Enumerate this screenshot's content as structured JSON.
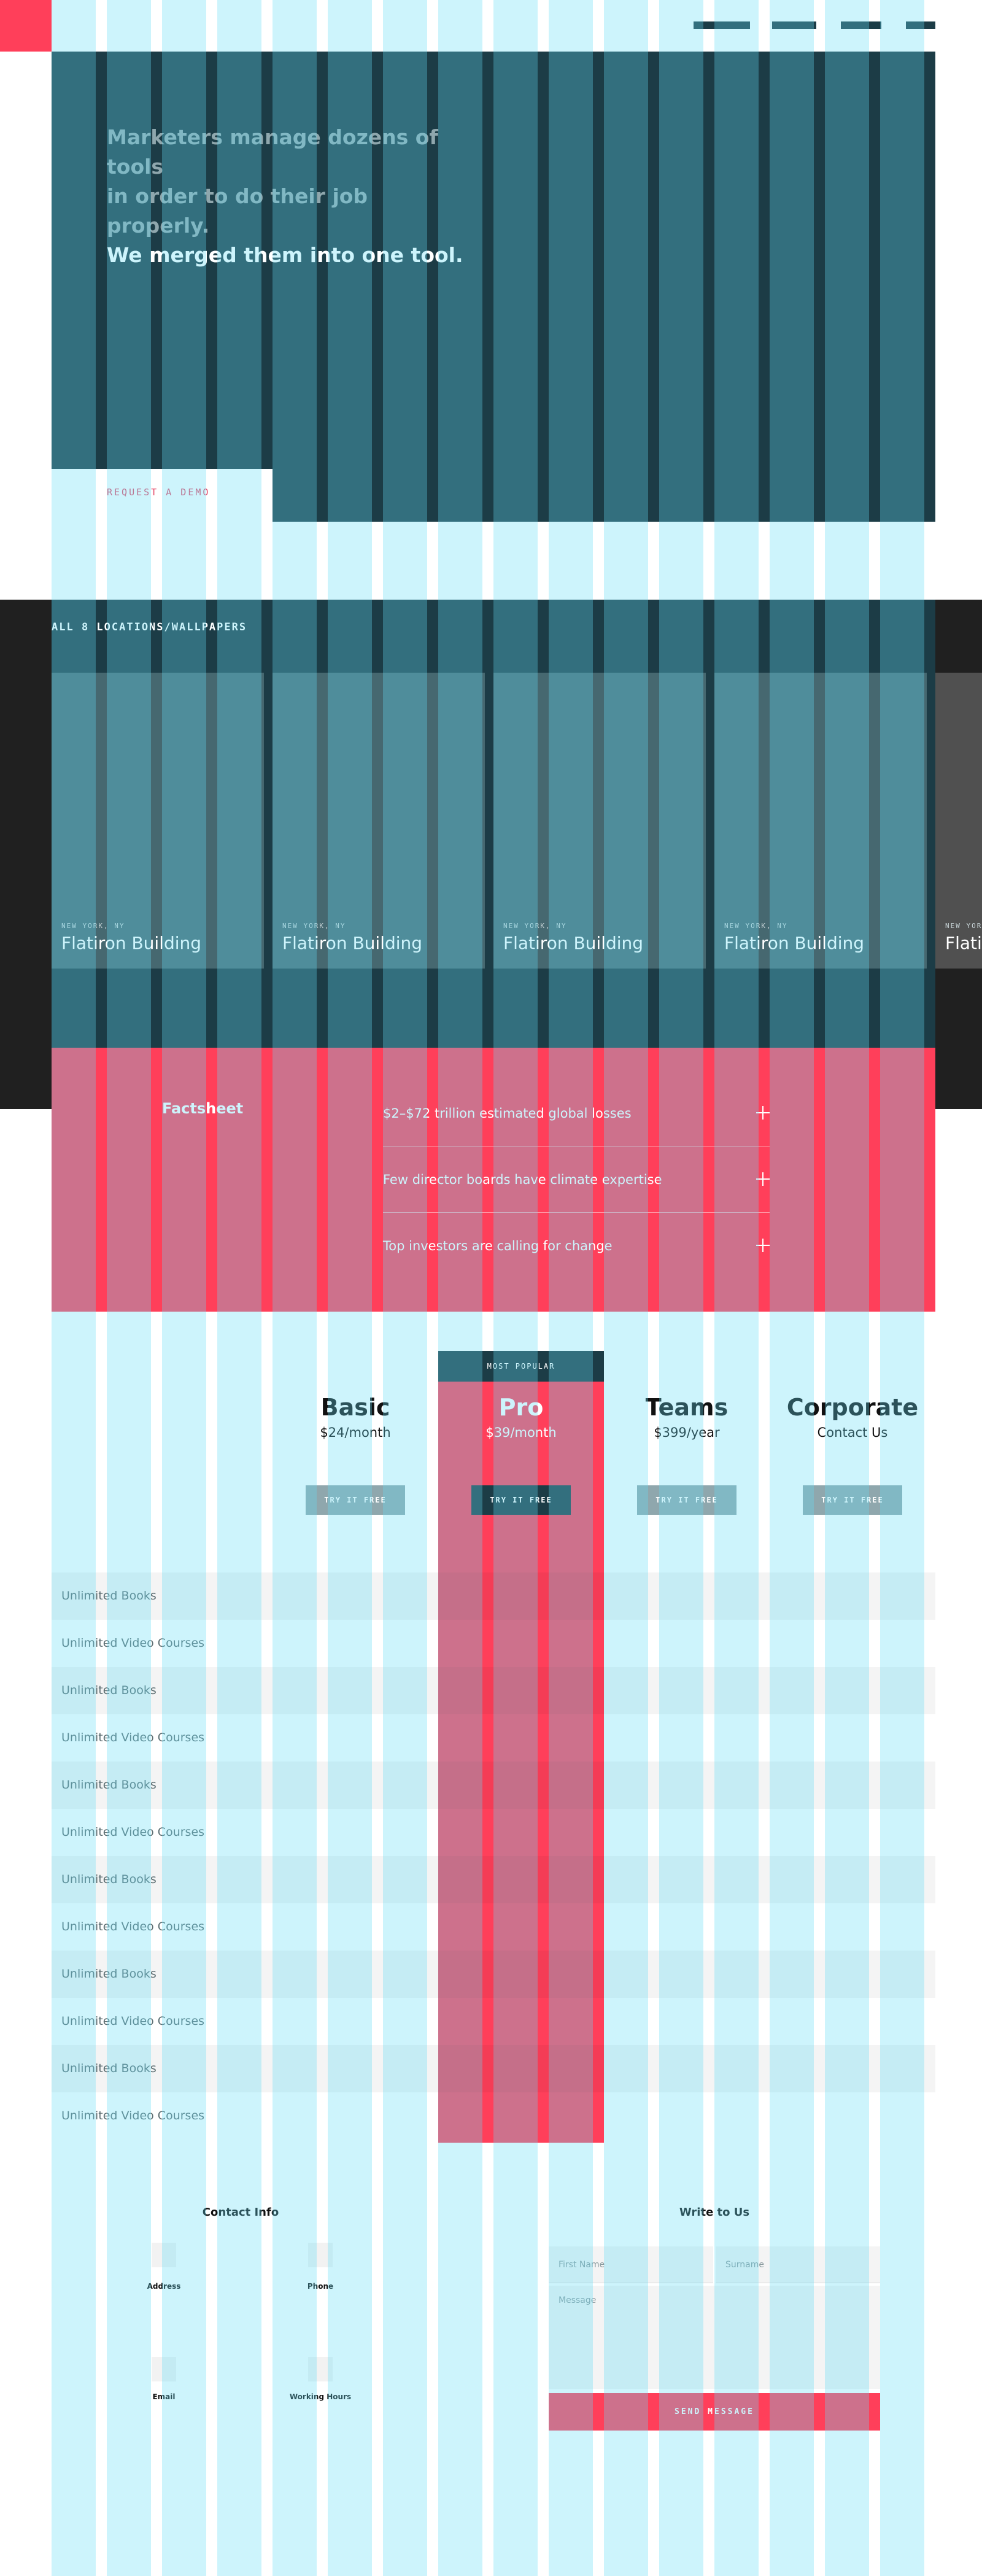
{
  "hero": {
    "line1": "Marketers manage dozens of tools",
    "line2": "in order to do their job properly.",
    "line3": "We merged them into one tool.",
    "cta": "REQUEST A DEMO"
  },
  "locations": {
    "heading": "ALL 8 LOCATIONS/WALLPAPERS",
    "cards": [
      {
        "city": "NEW YORK, NY",
        "title": "Flatiron Building"
      },
      {
        "city": "NEW YORK, NY",
        "title": "Flatiron Building"
      },
      {
        "city": "NEW YORK, NY",
        "title": "Flatiron Building"
      },
      {
        "city": "NEW YORK, NY",
        "title": "Flatiron Building"
      },
      {
        "city": "NEW YORK, NY",
        "title": "Flatiron Building"
      }
    ]
  },
  "factsheet": {
    "title": "Factsheet",
    "items": [
      {
        "text": "$2–$72 trillion estimated global losses"
      },
      {
        "text": "Few director boards have climate expertise"
      },
      {
        "text": "Top investors are calling for change"
      }
    ]
  },
  "pricing": {
    "badge": "MOST POPULAR",
    "plans": [
      {
        "name": "Basic",
        "price": "$24/month",
        "cta": "TRY IT FREE"
      },
      {
        "name": "Pro",
        "price": "$39/month",
        "cta": "TRY IT FREE"
      },
      {
        "name": "Teams",
        "price": "$399/year",
        "cta": "TRY IT FREE"
      },
      {
        "name": "Corporate",
        "price": "Contact Us",
        "cta": "TRY IT FREE"
      }
    ],
    "features": [
      "Unlimited Books",
      "Unlimited Video Courses",
      "Unlimited Books",
      "Unlimited Video Courses",
      "Unlimited Books",
      "Unlimited Video Courses",
      "Unlimited Books",
      "Unlimited Video Courses",
      "Unlimited Books",
      "Unlimited Video Courses",
      "Unlimited Books",
      "Unlimited Video Courses"
    ]
  },
  "contact": {
    "info_heading": "Contact Info",
    "address_label": "Address",
    "phone_label": "Phone",
    "email_label": "Email",
    "hours_label": "Working Hours",
    "form_heading": "Write to Us",
    "first_name_placeholder": "First Name",
    "surname_placeholder": "Surname",
    "message_placeholder": "Message",
    "send_label": "SEND MESSAGE"
  },
  "colors": {
    "dark_teal": "#1c3c46",
    "accent_red": "#ff3f5a",
    "charcoal": "#202020",
    "muted_teal": "#8fa7ad",
    "card_teal": "#466870",
    "grid_cyan": "#62dcf5"
  }
}
